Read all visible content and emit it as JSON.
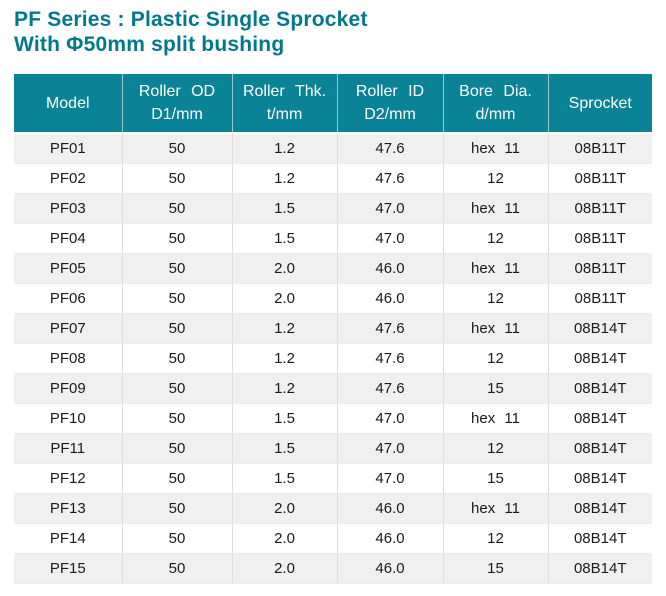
{
  "title": {
    "line1": "PF Series : Plastic Single Sprocket",
    "line2": "With Φ50mm split bushing"
  },
  "colors": {
    "title_text": "#00798C",
    "header_bg": "#0A8396",
    "header_text": "#FFFFFF",
    "row_alt_bg": "#F0F0F0",
    "row_bg": "#FFFFFF",
    "body_text": "#1B1B1B",
    "grid_line": "#DEDEDE"
  },
  "table": {
    "columns": [
      {
        "id": "model",
        "line1": "Model",
        "line2": ""
      },
      {
        "id": "roller-od",
        "line1": "Roller OD",
        "line2": "D1/mm"
      },
      {
        "id": "roller-thk",
        "line1": "Roller Thk.",
        "line2": "t/mm"
      },
      {
        "id": "roller-id",
        "line1": "Roller ID",
        "line2": "D2/mm"
      },
      {
        "id": "bore-dia",
        "line1": "Bore Dia.",
        "line2": "d/mm"
      },
      {
        "id": "sprocket",
        "line1": "Sprocket",
        "line2": ""
      }
    ],
    "rows": [
      [
        "PF01",
        "50",
        "1.2",
        "47.6",
        "hex 11",
        "08B11T"
      ],
      [
        "PF02",
        "50",
        "1.2",
        "47.6",
        "12",
        "08B11T"
      ],
      [
        "PF03",
        "50",
        "1.5",
        "47.0",
        "hex 11",
        "08B11T"
      ],
      [
        "PF04",
        "50",
        "1.5",
        "47.0",
        "12",
        "08B11T"
      ],
      [
        "PF05",
        "50",
        "2.0",
        "46.0",
        "hex 11",
        "08B11T"
      ],
      [
        "PF06",
        "50",
        "2.0",
        "46.0",
        "12",
        "08B11T"
      ],
      [
        "PF07",
        "50",
        "1.2",
        "47.6",
        "hex 11",
        "08B14T"
      ],
      [
        "PF08",
        "50",
        "1.2",
        "47.6",
        "12",
        "08B14T"
      ],
      [
        "PF09",
        "50",
        "1.2",
        "47.6",
        "15",
        "08B14T"
      ],
      [
        "PF10",
        "50",
        "1.5",
        "47.0",
        "hex 11",
        "08B14T"
      ],
      [
        "PF11",
        "50",
        "1.5",
        "47.0",
        "12",
        "08B14T"
      ],
      [
        "PF12",
        "50",
        "1.5",
        "47.0",
        "15",
        "08B14T"
      ],
      [
        "PF13",
        "50",
        "2.0",
        "46.0",
        "hex 11",
        "08B14T"
      ],
      [
        "PF14",
        "50",
        "2.0",
        "46.0",
        "12",
        "08B14T"
      ],
      [
        "PF15",
        "50",
        "2.0",
        "46.0",
        "15",
        "08B14T"
      ]
    ],
    "white_cells": [
      [
        8,
        4
      ]
    ]
  }
}
